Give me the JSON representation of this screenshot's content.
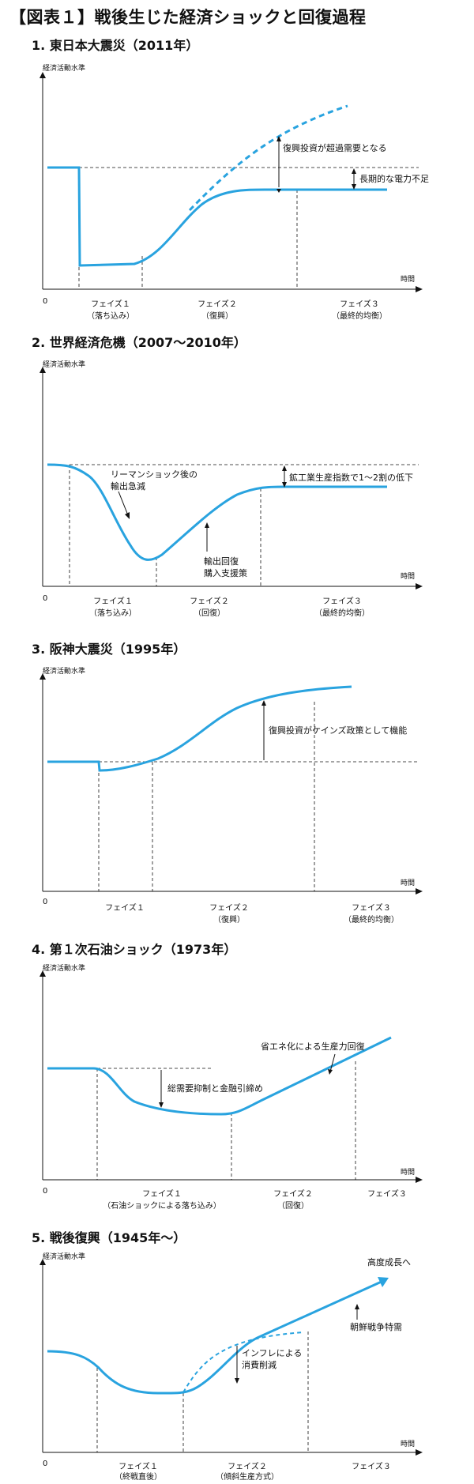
{
  "title": "【図表１】戦後生じた経済ショックと回復過程",
  "colors": {
    "curve": "#29a3df",
    "axis": "#111111",
    "guide": "#111111"
  },
  "common": {
    "ylabel": "経済活動水準",
    "xlabel": "時間",
    "origin": "0"
  },
  "charts": [
    {
      "title": "1. 東日本大震災（2011年）",
      "chart_data": {
        "type": "line",
        "xlabel": "時間",
        "ylabel": "経済活動水準",
        "phases": [
          {
            "name": "フェイズ１",
            "sub": "（落ち込み）"
          },
          {
            "name": "フェイズ２",
            "sub": "（復興）"
          },
          {
            "name": "フェイズ３",
            "sub": "（最終的均衡）"
          }
        ],
        "annotations": [
          "復興投資が超過需要となる",
          "長期的な電力不足"
        ]
      }
    },
    {
      "title": "2. 世界経済危機（2007〜2010年）",
      "chart_data": {
        "type": "line",
        "xlabel": "時間",
        "ylabel": "経済活動水準",
        "phases": [
          {
            "name": "フェイズ１",
            "sub": "（落ち込み）"
          },
          {
            "name": "フェイズ２",
            "sub": "（回復）"
          },
          {
            "name": "フェイズ３",
            "sub": "（最終的均衡）"
          }
        ],
        "annotations": [
          "リーマンショック後の",
          "輸出急減",
          "輸出回復",
          "購入支援策",
          "鉱工業生産指数で1〜2割の低下"
        ]
      }
    },
    {
      "title": "3. 阪神大震災（1995年）",
      "chart_data": {
        "type": "line",
        "xlabel": "時間",
        "ylabel": "経済活動水準",
        "phases": [
          {
            "name": "フェイズ１",
            "sub": ""
          },
          {
            "name": "フェイズ２",
            "sub": "（復興）"
          },
          {
            "name": "フェイズ３",
            "sub": "（最終的均衡）"
          }
        ],
        "annotations": [
          "復興投資がケインズ政策として機能"
        ]
      }
    },
    {
      "title": "4. 第１次石油ショック（1973年）",
      "chart_data": {
        "type": "line",
        "xlabel": "時間",
        "ylabel": "経済活動水準",
        "phases": [
          {
            "name": "フェイズ１",
            "sub": "（石油ショックによる落ち込み）"
          },
          {
            "name": "フェイズ２",
            "sub": "（回復）"
          },
          {
            "name": "フェイズ３",
            "sub": ""
          }
        ],
        "annotations": [
          "省エネ化による生産力回復",
          "総需要抑制と金融引締め"
        ]
      }
    },
    {
      "title": "5. 戦後復興（1945年〜）",
      "chart_data": {
        "type": "line",
        "xlabel": "時間",
        "ylabel": "経済活動水準",
        "phases": [
          {
            "name": "フェイズ１",
            "sub": "（終戦直後）"
          },
          {
            "name": "フェイズ２",
            "sub": "（傾斜生産方式）"
          },
          {
            "name": "フェイズ３",
            "sub": ""
          }
        ],
        "annotations": [
          "高度成長へ",
          "朝鮮戦争特需",
          "インフレによる",
          "消費削減"
        ]
      }
    }
  ]
}
